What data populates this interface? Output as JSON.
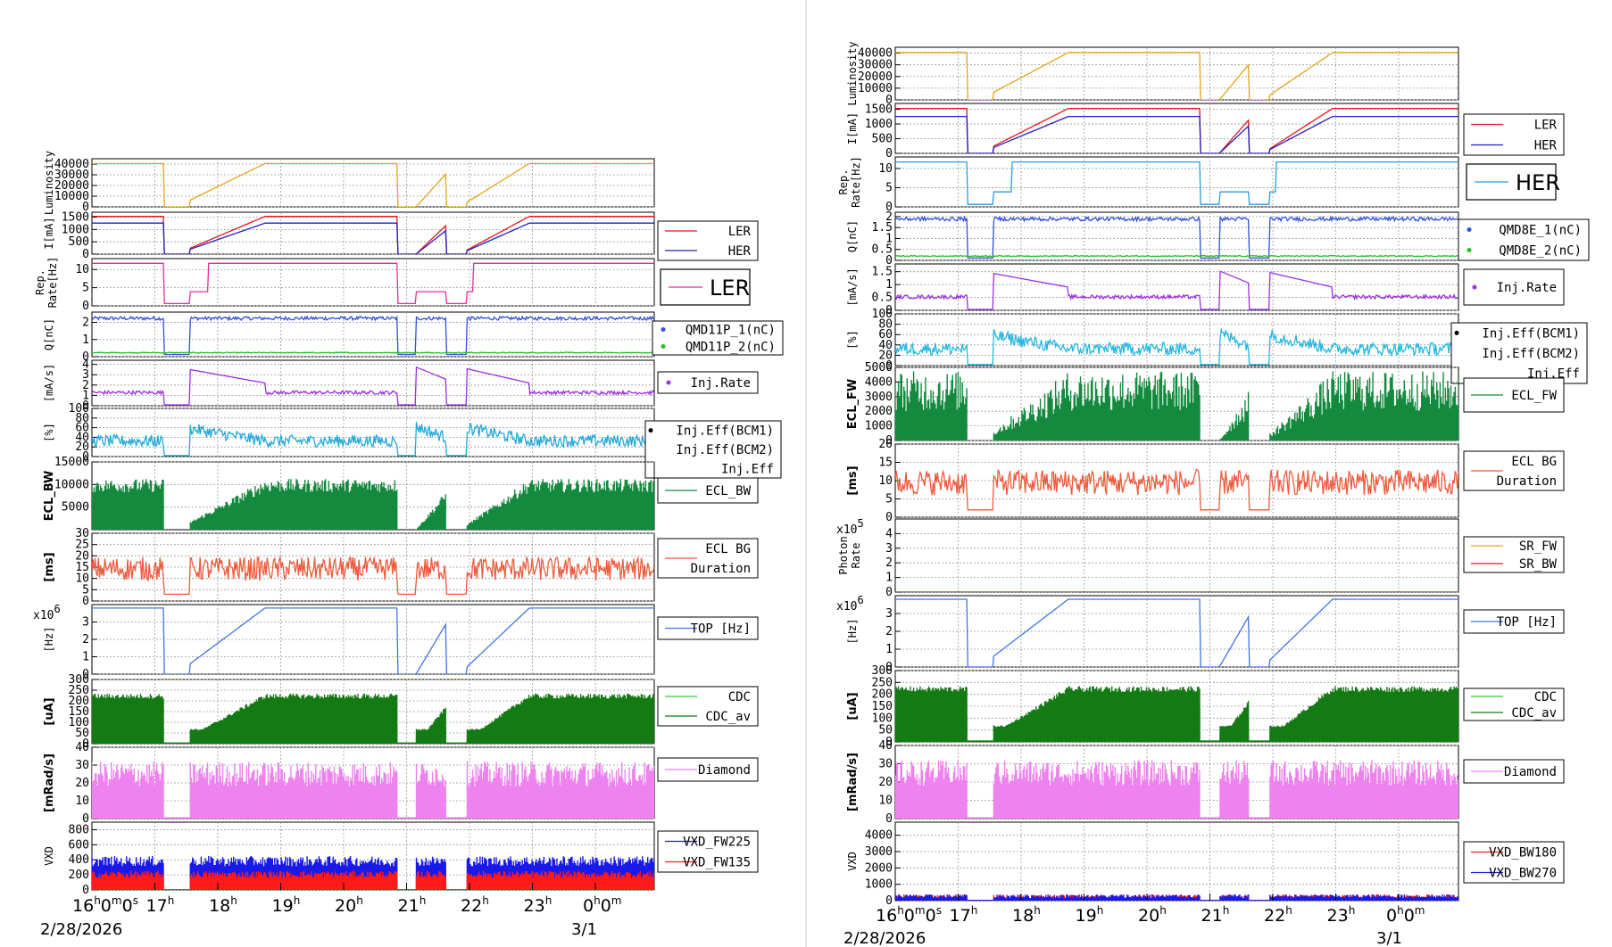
{
  "chart_data": [
    {
      "type": "line",
      "panel_set": "left",
      "date_label": "2/28/2026",
      "next_date_label": "3/1",
      "x_axis": {
        "unit": "hour",
        "start_tick": "16h0m0s",
        "ticks": [
          "17h",
          "18h",
          "19h",
          "20h",
          "21h",
          "22h",
          "23h",
          "0h0m"
        ]
      },
      "panels": [
        {
          "key": "lum",
          "ylabel": "Luminosity",
          "yticks": [
            "40000",
            "30000",
            "20000",
            "10000",
            "0"
          ],
          "ylim": [
            0,
            45000
          ],
          "series": [
            {
              "name": "",
              "color": "#e6a317"
            }
          ],
          "legend": []
        },
        {
          "key": "cur",
          "ylabel": "I[mA]",
          "yticks": [
            "1500",
            "1000",
            "500",
            "0"
          ],
          "ylim": [
            0,
            1700
          ],
          "series": [
            {
              "name": "LER",
              "color": "#e8141b"
            },
            {
              "name": "HER",
              "color": "#1f21c9"
            }
          ],
          "legend": [
            "LER",
            "HER"
          ]
        },
        {
          "key": "rep",
          "ylabel": "Rep. Rate[Hz]",
          "yticks": [
            "10",
            "5",
            "0"
          ],
          "ylim": [
            0,
            13
          ],
          "series": [
            {
              "name": "LER",
              "color": "#e0309a"
            }
          ],
          "legend_big": "LER"
        },
        {
          "key": "q",
          "ylabel": "Q[nC]",
          "yticks": [
            "2",
            "1",
            "0"
          ],
          "ylim": [
            0,
            2.6
          ],
          "series": [
            {
              "name": "QMD11P_1(nC)",
              "color": "#3050d8"
            },
            {
              "name": "QMD11P_2(nC)",
              "color": "#22c022"
            }
          ],
          "legend": [
            "QMD11P_1(nC)",
            "QMD11P_2(nC)"
          ]
        },
        {
          "key": "inj",
          "ylabel": "[mA/s]",
          "yticks": [
            "4",
            "3",
            "2",
            "1",
            "0"
          ],
          "ylim": [
            0,
            4.4
          ],
          "series": [
            {
              "name": "Inj.Rate",
              "color": "#9b30e0"
            }
          ],
          "legend": [
            "Inj.Rate"
          ]
        },
        {
          "key": "eff",
          "ylabel": "[%]",
          "yticks": [
            "100",
            "80",
            "60",
            "40",
            "20",
            "0"
          ],
          "ylim": [
            0,
            100
          ],
          "series": [
            {
              "name": "Inj.Eff",
              "color": "#22a8dc"
            }
          ],
          "legend": [
            "Inj.Eff(BCM1)",
            "Inj.Eff(BCM2)",
            "Inj.Eff"
          ]
        },
        {
          "key": "ecl",
          "ylabel": "ECL_BW",
          "yticks": [
            "15000",
            "10000",
            "5000"
          ],
          "ylim": [
            0,
            15000
          ],
          "series": [
            {
              "name": "ECL_BW",
              "color": "#138a3e"
            }
          ],
          "legend": [
            "ECL_BW"
          ]
        },
        {
          "key": "eclbg",
          "ylabel": "[ms]",
          "yticks": [
            "30",
            "25",
            "20",
            "15",
            "10",
            "5",
            "0"
          ],
          "ylim": [
            0,
            30
          ],
          "series": [
            {
              "name": "ECL BG Duration",
              "color": "#ef5a3c"
            }
          ],
          "legend": [
            "ECL BG",
            "Duration"
          ]
        },
        {
          "key": "top",
          "ylabel": "[Hz]",
          "exponent": "x10^6",
          "yticks": [
            "3",
            "2",
            "1",
            "0"
          ],
          "ylim": [
            0,
            4
          ],
          "series": [
            {
              "name": "TOP [Hz]",
              "color": "#3f74e8"
            }
          ],
          "legend": [
            "TOP [Hz]"
          ]
        },
        {
          "key": "cdc",
          "ylabel": "[uA]",
          "yticks": [
            "300",
            "250",
            "200",
            "150",
            "100",
            "50",
            "0"
          ],
          "ylim": [
            0,
            300
          ],
          "series": [
            {
              "name": "CDC",
              "color": "#22d022"
            },
            {
              "name": "CDC_av",
              "color": "#147a14"
            }
          ],
          "legend": [
            "CDC",
            "CDC_av"
          ]
        },
        {
          "key": "dia",
          "ylabel": "[mRad/s]",
          "yticks": [
            "40",
            "30",
            "20",
            "10",
            "0"
          ],
          "ylim": [
            0,
            40
          ],
          "series": [
            {
              "name": "Diamond",
              "color": "#ee82ee"
            }
          ],
          "legend": [
            "Diamond"
          ]
        },
        {
          "key": "vxd",
          "ylabel": "VXD",
          "yticks": [
            "800",
            "600",
            "400",
            "200",
            "0"
          ],
          "ylim": [
            0,
            900
          ],
          "series": [
            {
              "name": "VXD_FW225",
              "color": "#1a1ae8"
            },
            {
              "name": "VXD_FW135",
              "color": "#ff1a1a"
            }
          ],
          "legend": [
            "VXD_FW225",
            "VXD_FW135"
          ]
        }
      ]
    },
    {
      "type": "line",
      "panel_set": "right",
      "date_label": "2/28/2026",
      "next_date_label": "3/1",
      "x_axis": {
        "unit": "hour",
        "start_tick": "16h0m0s",
        "ticks": [
          "17h",
          "18h",
          "19h",
          "20h",
          "21h",
          "22h",
          "23h",
          "0h0m"
        ]
      },
      "panels": [
        {
          "key": "lum",
          "ylabel": "Luminosity",
          "yticks": [
            "40000",
            "30000",
            "20000",
            "10000",
            "0"
          ],
          "ylim": [
            0,
            45000
          ],
          "series": [
            {
              "name": "",
              "color": "#e6a317"
            }
          ],
          "legend": []
        },
        {
          "key": "cur",
          "ylabel": "I[mA]",
          "yticks": [
            "1500",
            "1000",
            "500",
            "0"
          ],
          "ylim": [
            0,
            1700
          ],
          "series": [
            {
              "name": "LER",
              "color": "#e8141b"
            },
            {
              "name": "HER",
              "color": "#1f21c9"
            }
          ],
          "legend": [
            "LER",
            "HER"
          ]
        },
        {
          "key": "rep",
          "ylabel": "Rep. Rate[Hz]",
          "yticks": [
            "10",
            "5",
            "0"
          ],
          "ylim": [
            0,
            13
          ],
          "series": [
            {
              "name": "HER",
              "color": "#2a9be0"
            }
          ],
          "legend_big": "HER"
        },
        {
          "key": "q",
          "ylabel": "Q[nC]",
          "yticks": [
            "2",
            "1.5",
            "1",
            "0.5",
            "0"
          ],
          "ylim": [
            0,
            2.2
          ],
          "series": [
            {
              "name": "QMD8E_1(nC)",
              "color": "#3050d8"
            },
            {
              "name": "QMD8E_2(nC)",
              "color": "#22c022"
            }
          ],
          "legend": [
            "QMD8E_1(nC)",
            "QMD8E_2(nC)"
          ]
        },
        {
          "key": "inj",
          "ylabel": "[mA/s]",
          "yticks": [
            "1.5",
            "1",
            "0.5",
            "0"
          ],
          "ylim": [
            0,
            1.8
          ],
          "series": [
            {
              "name": "Inj.Rate",
              "color": "#9b30e0"
            }
          ],
          "legend": [
            "Inj.Rate"
          ]
        },
        {
          "key": "eff",
          "ylabel": "[%]",
          "yticks": [
            "100",
            "80",
            "60",
            "40",
            "20",
            "0"
          ],
          "ylim": [
            0,
            100
          ],
          "series": [
            {
              "name": "Inj.Eff",
              "color": "#22b8e0"
            }
          ],
          "legend": [
            "Inj.Eff(BCM1)",
            "Inj.Eff(BCM2)",
            "Inj.Eff"
          ]
        },
        {
          "key": "ecl",
          "ylabel": "ECL_FW",
          "yticks": [
            "5000",
            "4000",
            "3000",
            "2000",
            "1000",
            "0"
          ],
          "ylim": [
            0,
            5000
          ],
          "series": [
            {
              "name": "ECL_FW",
              "color": "#138a3e"
            }
          ],
          "legend": [
            "ECL_FW"
          ]
        },
        {
          "key": "eclbg",
          "ylabel": "[ms]",
          "yticks": [
            "20",
            "15",
            "10",
            "5",
            "0"
          ],
          "ylim": [
            0,
            20
          ],
          "series": [
            {
              "name": "ECL BG Duration",
              "color": "#ef5a3c"
            }
          ],
          "legend": [
            "ECL BG",
            "Duration"
          ]
        },
        {
          "key": "sr",
          "ylabel": "Photon Rate",
          "exponent": "x10^5",
          "yticks": [
            "4",
            "3",
            "2",
            "1",
            "0"
          ],
          "ylim": [
            0,
            5
          ],
          "series": [
            {
              "name": "SR_FW",
              "color": "#e6a317"
            },
            {
              "name": "SR_BW",
              "color": "#e8141b"
            }
          ],
          "legend": [
            "SR_FW",
            "SR_BW"
          ]
        },
        {
          "key": "top",
          "ylabel": "[Hz]",
          "exponent": "x10^6",
          "yticks": [
            "3",
            "2",
            "1",
            "0"
          ],
          "ylim": [
            0,
            4
          ],
          "series": [
            {
              "name": "TOP [Hz]",
              "color": "#3f74e8"
            }
          ],
          "legend": [
            "TOP [Hz]"
          ]
        },
        {
          "key": "cdc",
          "ylabel": "[uA]",
          "yticks": [
            "300",
            "250",
            "200",
            "150",
            "100",
            "50",
            "0"
          ],
          "ylim": [
            0,
            300
          ],
          "series": [
            {
              "name": "CDC",
              "color": "#22d022"
            },
            {
              "name": "CDC_av",
              "color": "#147a14"
            }
          ],
          "legend": [
            "CDC",
            "CDC_av"
          ]
        },
        {
          "key": "dia",
          "ylabel": "[mRad/s]",
          "yticks": [
            "40",
            "30",
            "20",
            "10",
            "0"
          ],
          "ylim": [
            0,
            40
          ],
          "series": [
            {
              "name": "Diamond",
              "color": "#ee82ee"
            }
          ],
          "legend": [
            "Diamond"
          ]
        },
        {
          "key": "vxd",
          "ylabel": "VXD",
          "yticks": [
            "4000",
            "3000",
            "2000",
            "1000",
            "0"
          ],
          "ylim": [
            0,
            4800
          ],
          "series": [
            {
              "name": "VXD_BW180",
              "color": "#ff1a1a"
            },
            {
              "name": "VXD_BW270",
              "color": "#1a1ae8"
            }
          ],
          "legend": [
            "VXD_BW180",
            "VXD_BW270"
          ]
        }
      ]
    }
  ]
}
